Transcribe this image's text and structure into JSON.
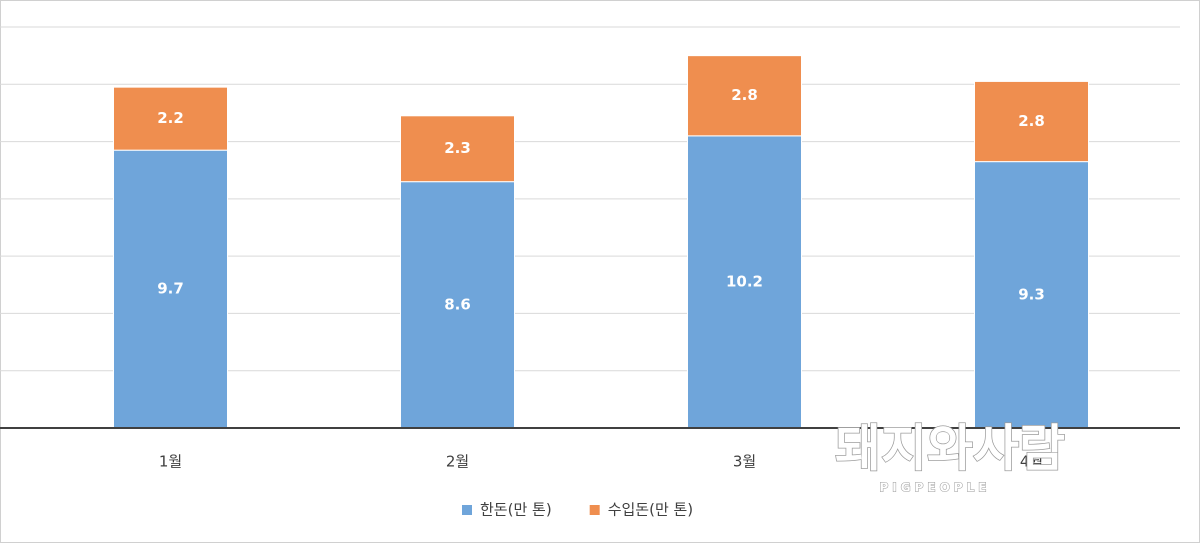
{
  "chart_data": {
    "type": "stacked_bar",
    "categories": [
      "1월",
      "2월",
      "3월",
      "4월"
    ],
    "series": [
      {
        "name": "한돈(만 톤)",
        "color": "#6fa5da",
        "values": [
          9.7,
          8.6,
          10.2,
          9.3
        ]
      },
      {
        "name": "수입돈(만 톤)",
        "color": "#ef8e4f",
        "values": [
          2.2,
          2.3,
          2.8,
          2.8
        ]
      }
    ],
    "ylim": [
      0,
      14
    ],
    "yticks": [
      0,
      2,
      4,
      6,
      8,
      10,
      12,
      14
    ],
    "grid": true,
    "legend": "bottom"
  },
  "watermark": {
    "title": "돼지와사람",
    "subtitle": "PIGPEOPLE"
  }
}
